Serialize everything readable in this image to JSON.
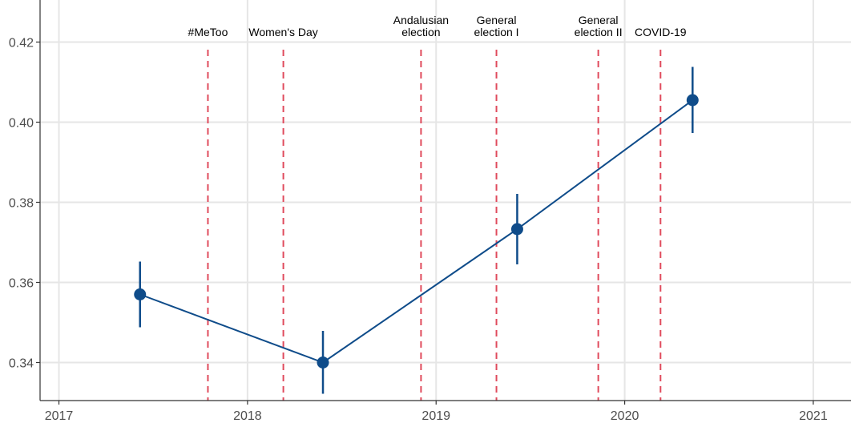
{
  "chart_data": {
    "type": "line",
    "title": "",
    "xlabel": "",
    "ylabel": "",
    "xlim": [
      2016.9,
      2021.2
    ],
    "ylim": [
      0.3305,
      0.4305
    ],
    "x_ticks": [
      2017,
      2018,
      2019,
      2020,
      2021
    ],
    "x_tick_labels": [
      "2017",
      "2018",
      "2019",
      "2020",
      "2021"
    ],
    "y_ticks": [
      0.34,
      0.36,
      0.38,
      0.4,
      0.42
    ],
    "y_tick_labels": [
      "0.34",
      "0.36",
      "0.38",
      "0.40",
      "0.42"
    ],
    "grid": true,
    "series": [
      {
        "x": [
          2017.43,
          2018.4,
          2019.43,
          2020.36
        ],
        "y": [
          0.357,
          0.34,
          0.3733,
          0.4055
        ],
        "ci_low": [
          0.3488,
          0.3322,
          0.3645,
          0.3973
        ],
        "ci_high": [
          0.3652,
          0.3479,
          0.3821,
          0.4138
        ]
      }
    ],
    "events": [
      {
        "x": 2017.79,
        "label_lines": [
          "#MeToo"
        ]
      },
      {
        "x": 2018.19,
        "label_lines": [
          "Women's Day"
        ]
      },
      {
        "x": 2018.92,
        "label_lines": [
          "Andalusian",
          "election"
        ]
      },
      {
        "x": 2019.32,
        "label_lines": [
          "General",
          "election I"
        ]
      },
      {
        "x": 2019.86,
        "label_lines": [
          "General",
          "election II"
        ]
      },
      {
        "x": 2020.19,
        "label_lines": [
          "COVID-19"
        ]
      }
    ],
    "colors": {
      "series": "#0f4c8a",
      "event_line": "#e04a5c",
      "grid": "#e6e6e6",
      "axis": "#333333"
    }
  }
}
